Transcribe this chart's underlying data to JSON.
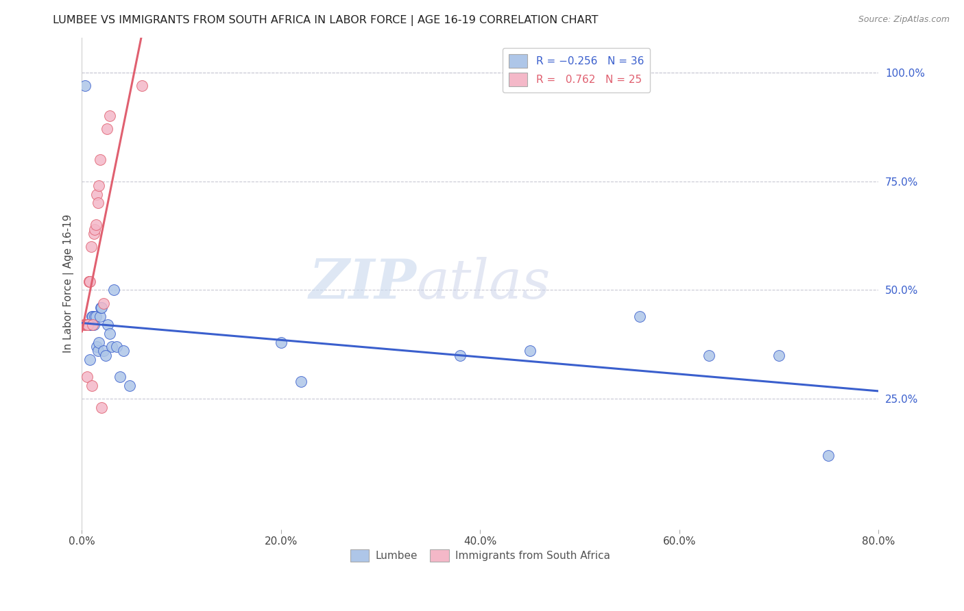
{
  "title": "LUMBEE VS IMMIGRANTS FROM SOUTH AFRICA IN LABOR FORCE | AGE 16-19 CORRELATION CHART",
  "source": "Source: ZipAtlas.com",
  "ylabel": "In Labor Force | Age 16-19",
  "xlim": [
    0.0,
    0.8
  ],
  "ylim": [
    -0.05,
    1.08
  ],
  "xticks": [
    0.0,
    0.2,
    0.4,
    0.6,
    0.8
  ],
  "yticks_right": [
    0.25,
    0.5,
    0.75,
    1.0
  ],
  "ytick_labels_right": [
    "25.0%",
    "50.0%",
    "75.0%",
    "100.0%"
  ],
  "xtick_labels": [
    "0.0%",
    "20.0%",
    "40.0%",
    "60.0%",
    "80.0%"
  ],
  "lumbee_x": [
    0.003,
    0.005,
    0.007,
    0.007,
    0.008,
    0.009,
    0.01,
    0.01,
    0.011,
    0.012,
    0.013,
    0.014,
    0.015,
    0.016,
    0.017,
    0.018,
    0.019,
    0.02,
    0.022,
    0.024,
    0.026,
    0.028,
    0.03,
    0.032,
    0.035,
    0.038,
    0.042,
    0.048,
    0.2,
    0.22,
    0.38,
    0.45,
    0.56,
    0.63,
    0.7,
    0.75
  ],
  "lumbee_y": [
    0.97,
    0.42,
    0.42,
    0.42,
    0.34,
    0.42,
    0.44,
    0.42,
    0.44,
    0.42,
    0.44,
    0.44,
    0.37,
    0.36,
    0.38,
    0.44,
    0.46,
    0.46,
    0.36,
    0.35,
    0.42,
    0.4,
    0.37,
    0.5,
    0.37,
    0.3,
    0.36,
    0.28,
    0.38,
    0.29,
    0.35,
    0.36,
    0.44,
    0.35,
    0.35,
    0.12
  ],
  "sa_x": [
    0.002,
    0.003,
    0.004,
    0.005,
    0.005,
    0.005,
    0.006,
    0.007,
    0.007,
    0.008,
    0.009,
    0.01,
    0.011,
    0.012,
    0.013,
    0.014,
    0.015,
    0.016,
    0.017,
    0.018,
    0.02,
    0.022,
    0.025,
    0.028,
    0.06
  ],
  "sa_y": [
    0.42,
    0.42,
    0.42,
    0.42,
    0.42,
    0.3,
    0.42,
    0.52,
    0.52,
    0.52,
    0.6,
    0.28,
    0.42,
    0.63,
    0.64,
    0.65,
    0.72,
    0.7,
    0.74,
    0.8,
    0.23,
    0.47,
    0.87,
    0.9,
    0.97
  ],
  "lumbee_R": -0.256,
  "lumbee_N": 36,
  "sa_R": 0.762,
  "sa_N": 25,
  "lumbee_color": "#aec6e8",
  "sa_color": "#f4b8c8",
  "lumbee_line_color": "#3a5fcd",
  "sa_line_color": "#e06070",
  "watermark_zip": "ZIP",
  "watermark_atlas": "atlas",
  "background_color": "#ffffff",
  "grid_color": "#c8c8d4"
}
